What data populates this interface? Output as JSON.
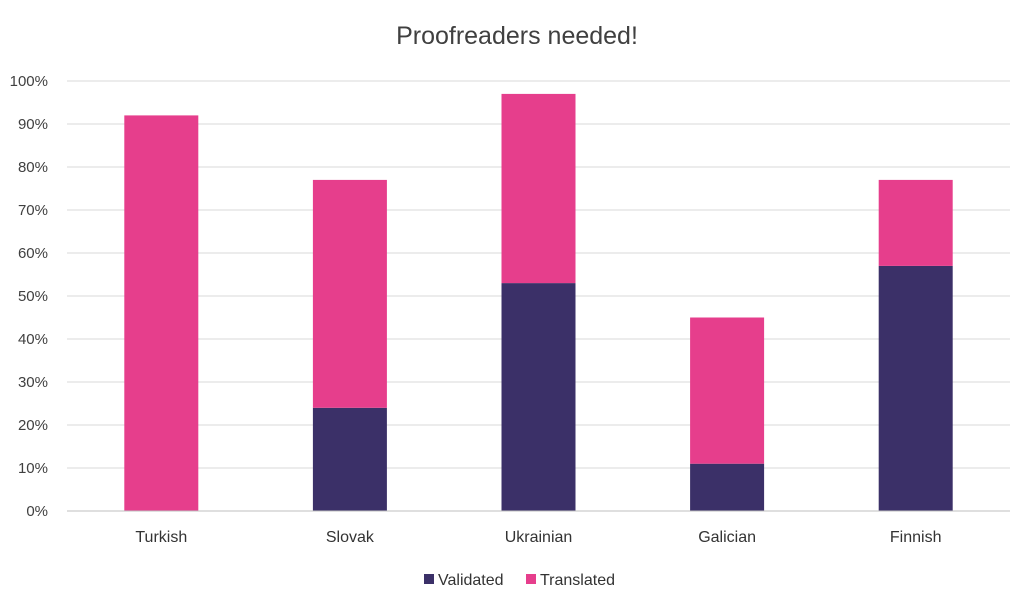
{
  "chart_data": {
    "type": "bar",
    "stacked": true,
    "title": "Proofreaders needed!",
    "categories": [
      "Turkish",
      "Slovak",
      "Ukrainian",
      "Galician",
      "Finnish"
    ],
    "series": [
      {
        "name": "Validated",
        "color": "#3b3068",
        "values": [
          0,
          24,
          53,
          11,
          57
        ]
      },
      {
        "name": "Translated",
        "color": "#e63e8c",
        "values": [
          92,
          53,
          44,
          34,
          20
        ]
      }
    ],
    "y_ticks": [
      "0%",
      "10%",
      "20%",
      "30%",
      "40%",
      "50%",
      "60%",
      "70%",
      "80%",
      "90%",
      "100%"
    ],
    "ylim": [
      0,
      100
    ],
    "grid": true,
    "legend_position": "bottom"
  }
}
